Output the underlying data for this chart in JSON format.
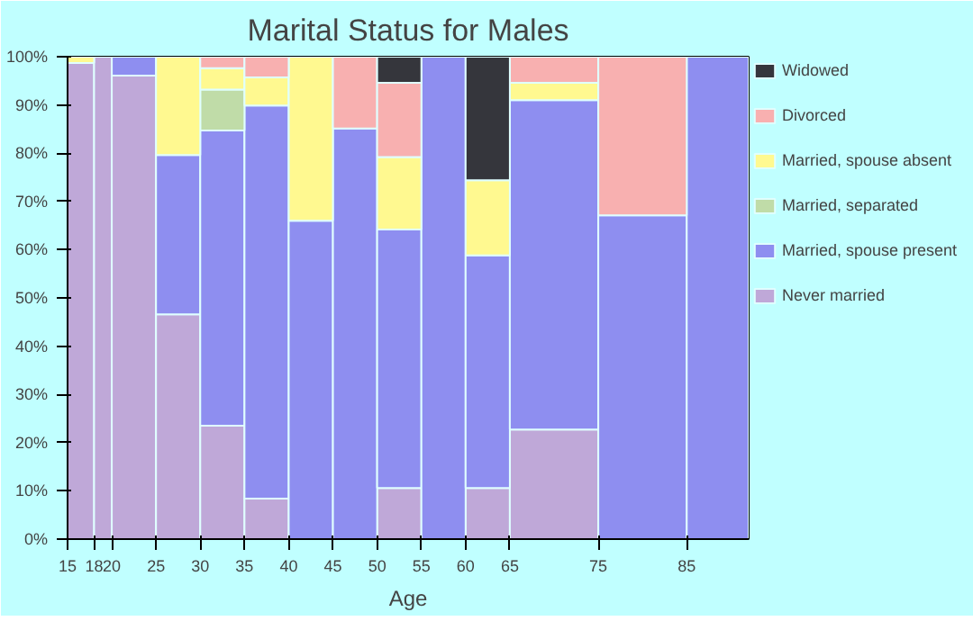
{
  "chart_data": {
    "type": "bar",
    "stacked": true,
    "title": "Marital Status for Males",
    "xlabel": "Age",
    "x": [
      16.5,
      19,
      22.5,
      27.5,
      32.5,
      37.5,
      42.5,
      47.5,
      52.5,
      57.5,
      62.5,
      70,
      80,
      88.5
    ],
    "xlim": [
      15,
      92
    ],
    "xticks": [
      15,
      18,
      20,
      25,
      30,
      35,
      40,
      45,
      50,
      55,
      60,
      65,
      75,
      85
    ],
    "ylim": [
      0,
      100
    ],
    "yticks": [
      {
        "value": 0,
        "label": "0%"
      },
      {
        "value": 10,
        "label": "10%"
      },
      {
        "value": 20,
        "label": "20%"
      },
      {
        "value": 30,
        "label": "30%"
      },
      {
        "value": 40,
        "label": "40%"
      },
      {
        "value": 50,
        "label": "50%"
      },
      {
        "value": 60,
        "label": "60%"
      },
      {
        "value": 70,
        "label": "70%"
      },
      {
        "value": 80,
        "label": "80%"
      },
      {
        "value": 90,
        "label": "90%"
      },
      {
        "value": 100,
        "label": "100%"
      }
    ],
    "legend": "right",
    "series": [
      {
        "name": "Never married",
        "color": "#bfa8d8",
        "values": [
          98.7,
          100,
          96.1,
          46.6,
          23.5,
          8.4,
          0,
          0,
          10.6,
          0,
          10.6,
          22.7,
          0,
          0
        ]
      },
      {
        "name": "Married, spouse present",
        "color": "#8e8ef0",
        "values": [
          0,
          0,
          3.9,
          33.0,
          61.2,
          81.5,
          66.0,
          85.1,
          53.6,
          100,
          48.2,
          68.3,
          67.1,
          100
        ]
      },
      {
        "name": "Married, separated",
        "color": "#c0dca8",
        "values": [
          0,
          0,
          0,
          0,
          8.5,
          0,
          0,
          0,
          0,
          0,
          0,
          0,
          0,
          0
        ]
      },
      {
        "name": "Married, spouse absent",
        "color": "#fff990",
        "values": [
          1.3,
          0,
          0,
          20.4,
          4.4,
          5.8,
          34.0,
          0,
          15.0,
          0,
          15.6,
          3.6,
          0,
          0
        ]
      },
      {
        "name": "Divorced",
        "color": "#f8b0b0",
        "values": [
          0,
          0,
          0,
          0,
          2.4,
          4.3,
          0,
          14.9,
          15.4,
          0,
          0,
          5.4,
          32.9,
          0
        ]
      },
      {
        "name": "Widowed",
        "color": "#35363c",
        "values": [
          0,
          0,
          0,
          0,
          0,
          0,
          0,
          0,
          5.4,
          0,
          25.6,
          0,
          0,
          0
        ]
      }
    ]
  }
}
